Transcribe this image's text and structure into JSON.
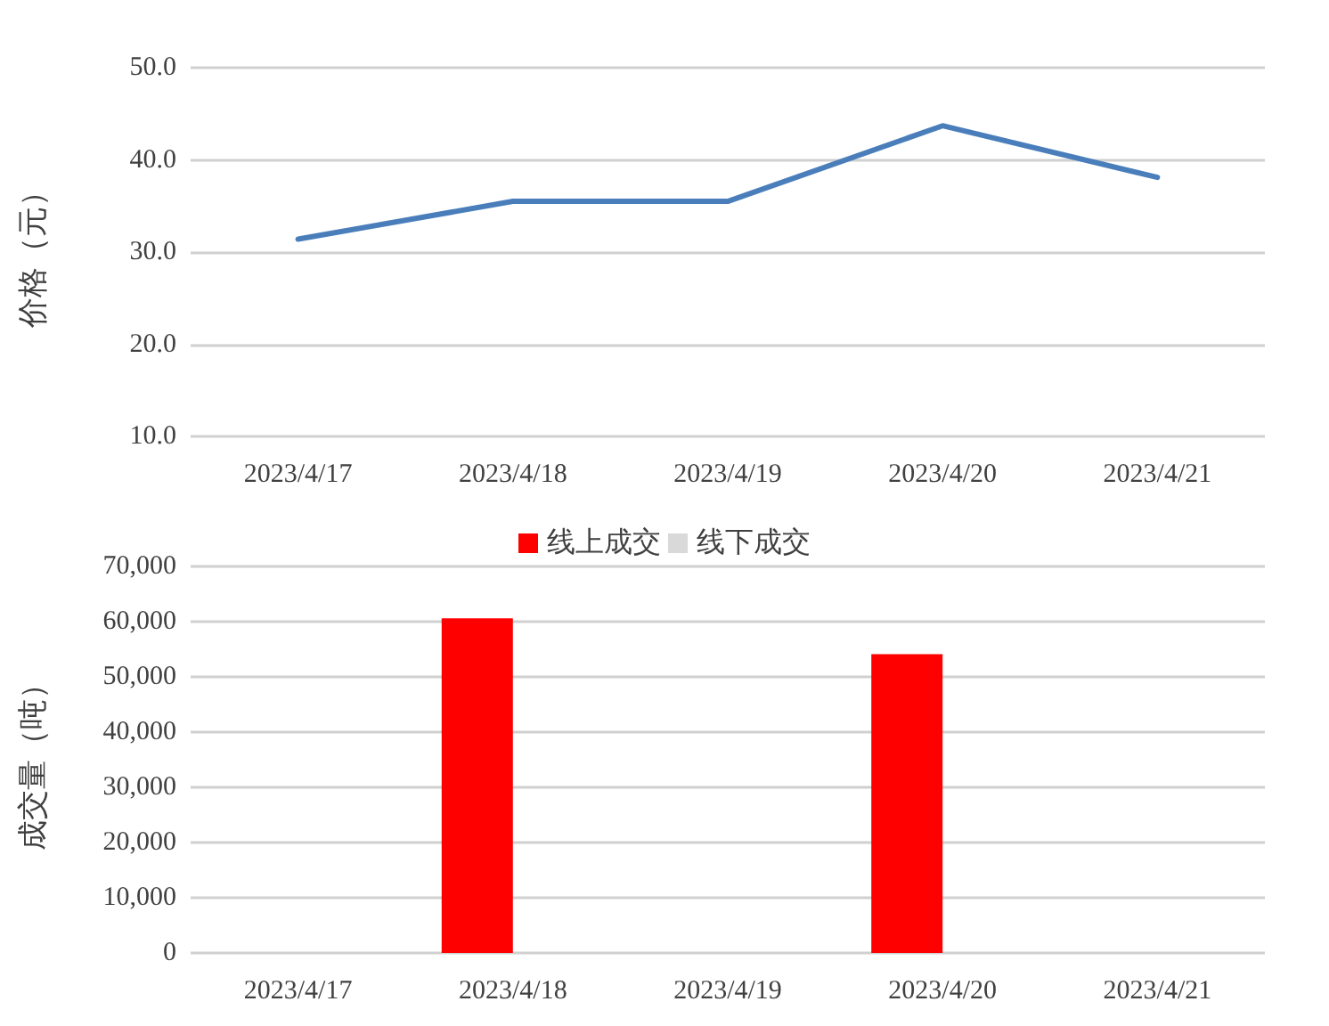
{
  "chart_data": [
    {
      "type": "line",
      "ylabel": "价格（元）",
      "categories": [
        "2023/4/17",
        "2023/4/18",
        "2023/4/19",
        "2023/4/20",
        "2023/4/21"
      ],
      "series": [
        {
          "color": "#4a7ebb",
          "values": [
            31.4,
            35.5,
            35.5,
            43.7,
            38.1
          ]
        }
      ],
      "ylim": [
        10,
        50
      ],
      "yticks": [
        {
          "value": 10,
          "label": "10.0"
        },
        {
          "value": 20,
          "label": "20.0"
        },
        {
          "value": 30,
          "label": "30.0"
        },
        {
          "value": 40,
          "label": "40.0"
        },
        {
          "value": 50,
          "label": "50.0"
        }
      ],
      "grid": "y",
      "legend": false,
      "marker": "none",
      "line_style": "solid"
    },
    {
      "type": "bar",
      "ylabel": "成交量（吨）",
      "categories": [
        "2023/4/17",
        "2023/4/18",
        "2023/4/19",
        "2023/4/20",
        "2023/4/21"
      ],
      "series": [
        {
          "name": "线上成交",
          "color": "#ff0000",
          "values": [
            null,
            60600,
            null,
            54100,
            null
          ]
        },
        {
          "name": "线下成交",
          "color": "#d9d9d9",
          "values": [
            null,
            null,
            null,
            null,
            null
          ]
        }
      ],
      "ylim": [
        0,
        70000
      ],
      "yticks": [
        {
          "value": 0,
          "label": "0"
        },
        {
          "value": 10000,
          "label": "10,000"
        },
        {
          "value": 20000,
          "label": "20,000"
        },
        {
          "value": 30000,
          "label": "30,000"
        },
        {
          "value": 40000,
          "label": "40,000"
        },
        {
          "value": 50000,
          "label": "50,000"
        },
        {
          "value": 60000,
          "label": "60,000"
        },
        {
          "value": 70000,
          "label": "70,000"
        }
      ],
      "grid": "y",
      "legend": "top"
    }
  ]
}
